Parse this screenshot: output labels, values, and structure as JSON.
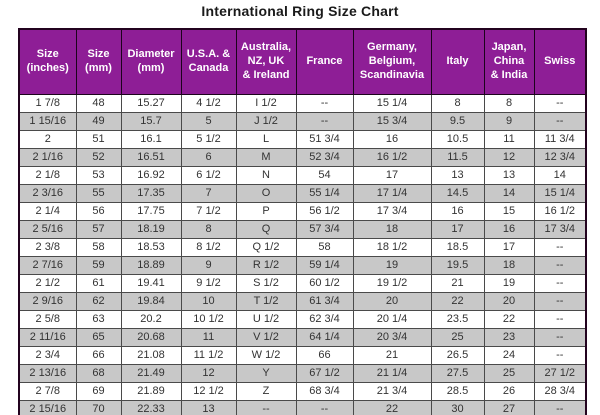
{
  "title": "International Ring Size Chart",
  "chart_data": {
    "type": "table",
    "title": "International Ring Size Chart",
    "columns": [
      "Size\n(inches)",
      "Size\n(mm)",
      "Diameter\n(mm)",
      "U.S.A. &\nCanada",
      "Australia,\nNZ, UK\n& Ireland",
      "France",
      "Germany,\nBelgium,\nScandinavia",
      "Italy",
      "Japan,\nChina\n& India",
      "Swiss"
    ],
    "rows": [
      [
        "1 7/8",
        "48",
        "15.27",
        "4 1/2",
        "I 1/2",
        "--",
        "15 1/4",
        "8",
        "8",
        "--"
      ],
      [
        "1 15/16",
        "49",
        "15.7",
        "5",
        "J 1/2",
        "--",
        "15 3/4",
        "9.5",
        "9",
        "--"
      ],
      [
        "2",
        "51",
        "16.1",
        "5 1/2",
        "L",
        "51 3/4",
        "16",
        "10.5",
        "11",
        "11 3/4"
      ],
      [
        "2 1/16",
        "52",
        "16.51",
        "6",
        "M",
        "52 3/4",
        "16 1/2",
        "11.5",
        "12",
        "12 3/4"
      ],
      [
        "2 1/8",
        "53",
        "16.92",
        "6 1/2",
        "N",
        "54",
        "17",
        "13",
        "13",
        "14"
      ],
      [
        "2 3/16",
        "55",
        "17.35",
        "7",
        "O",
        "55 1/4",
        "17 1/4",
        "14.5",
        "14",
        "15 1/4"
      ],
      [
        "2 1/4",
        "56",
        "17.75",
        "7 1/2",
        "P",
        "56 1/2",
        "17 3/4",
        "16",
        "15",
        "16 1/2"
      ],
      [
        "2 5/16",
        "57",
        "18.19",
        "8",
        "Q",
        "57 3/4",
        "18",
        "17",
        "16",
        "17 3/4"
      ],
      [
        "2 3/8",
        "58",
        "18.53",
        "8 1/2",
        "Q 1/2",
        "58",
        "18 1/2",
        "18.5",
        "17",
        "--"
      ],
      [
        "2 7/16",
        "59",
        "18.89",
        "9",
        "R 1/2",
        "59 1/4",
        "19",
        "19.5",
        "18",
        "--"
      ],
      [
        "2 1/2",
        "61",
        "19.41",
        "9 1/2",
        "S 1/2",
        "60 1/2",
        "19 1/2",
        "21",
        "19",
        "--"
      ],
      [
        "2 9/16",
        "62",
        "19.84",
        "10",
        "T 1/2",
        "61 3/4",
        "20",
        "22",
        "20",
        "--"
      ],
      [
        "2 5/8",
        "63",
        "20.2",
        "10 1/2",
        "U 1/2",
        "62 3/4",
        "20 1/4",
        "23.5",
        "22",
        "--"
      ],
      [
        "2 11/16",
        "65",
        "20.68",
        "11",
        "V 1/2",
        "64 1/4",
        "20 3/4",
        "25",
        "23",
        "--"
      ],
      [
        "2 3/4",
        "66",
        "21.08",
        "11 1/2",
        "W 1/2",
        "66",
        "21",
        "26.5",
        "24",
        "--"
      ],
      [
        "2 13/16",
        "68",
        "21.49",
        "12",
        "Y",
        "67 1/2",
        "21 1/4",
        "27.5",
        "25",
        "27 1/2"
      ],
      [
        "2 7/8",
        "69",
        "21.89",
        "12 1/2",
        "Z",
        "68 3/4",
        "21 3/4",
        "28.5",
        "26",
        "28 3/4"
      ],
      [
        "2 15/16",
        "70",
        "22.33",
        "13",
        "--",
        "--",
        "22",
        "30",
        "27",
        "--"
      ]
    ]
  },
  "colors": {
    "header_bg": "#8E1E96",
    "header_text": "#FFFFFF",
    "row_bg": "#FFFFFF",
    "row_alt_bg": "#C8C8C8",
    "grid_line": "#4A4A4A",
    "outer_border": "#23031F",
    "title_text": "#1A1A1A",
    "cell_text": "#333333"
  }
}
